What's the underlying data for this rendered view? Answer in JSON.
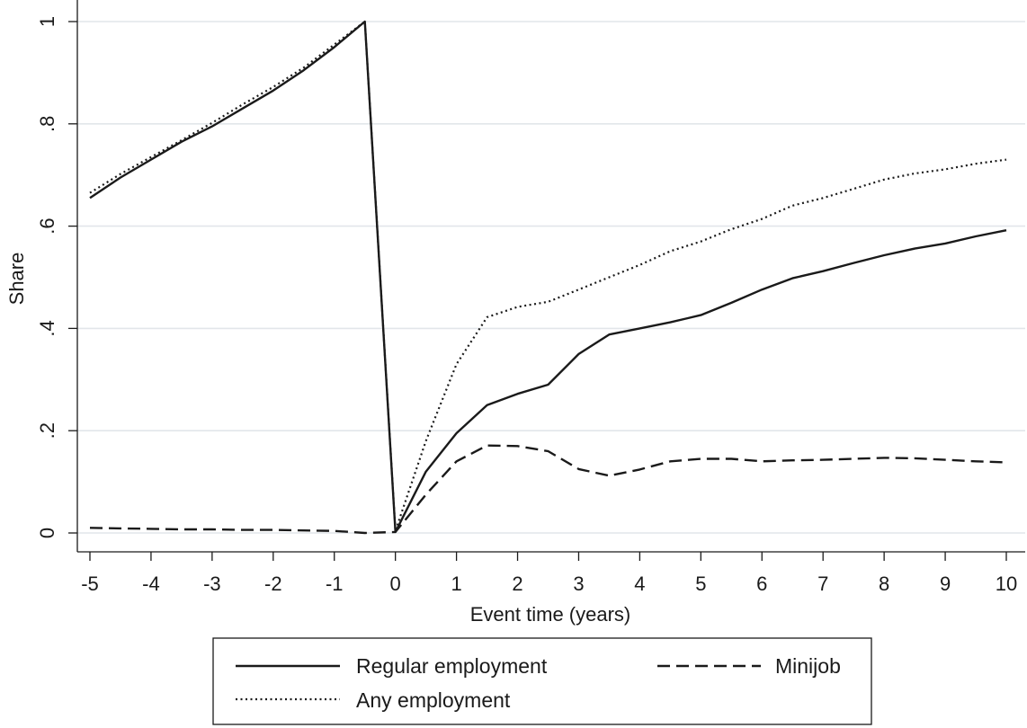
{
  "chart_data": {
    "type": "line",
    "title": "",
    "xlabel": "Event time (years)",
    "ylabel": "Share",
    "xlim": [
      -5,
      10
    ],
    "ylim": [
      0,
      1
    ],
    "x_ticks": [
      -5,
      -4,
      -3,
      -2,
      -1,
      0,
      1,
      2,
      3,
      4,
      5,
      6,
      7,
      8,
      9,
      10
    ],
    "x_tick_labels": [
      "-5",
      "-4",
      "-3",
      "-2",
      "-1",
      "0",
      "1",
      "2",
      "3",
      "4",
      "5",
      "6",
      "7",
      "8",
      "9",
      "10"
    ],
    "y_ticks": [
      0,
      0.2,
      0.4,
      0.6,
      0.8,
      1
    ],
    "y_tick_labels": [
      "0",
      ".2",
      ".4",
      ".6",
      ".8",
      "1"
    ],
    "grid": "horizontal",
    "legend_position": "bottom, outside plot",
    "series": [
      {
        "name": "Regular employment",
        "style": "solid",
        "color": "#1a1a1a",
        "x": [
          -5,
          -4.5,
          -4,
          -3.5,
          -3,
          -2.5,
          -2,
          -1.5,
          -1,
          -0.5,
          0,
          0.5,
          1,
          1.5,
          2,
          2.5,
          3,
          3.5,
          4,
          4.5,
          5,
          5.5,
          6,
          6.5,
          7,
          7.5,
          8,
          8.5,
          9,
          9.5,
          10
        ],
        "y": [
          0.655,
          0.695,
          0.73,
          0.765,
          0.795,
          0.83,
          0.865,
          0.905,
          0.95,
          1.0,
          0.002,
          0.12,
          0.195,
          0.25,
          0.272,
          0.29,
          0.35,
          0.388,
          0.4,
          0.412,
          0.426,
          0.45,
          0.476,
          0.498,
          0.512,
          0.528,
          0.543,
          0.556,
          0.566,
          0.58,
          0.592
        ]
      },
      {
        "name": "Minijob",
        "style": "dashed",
        "color": "#1a1a1a",
        "x": [
          -5,
          -4.5,
          -4,
          -3.5,
          -3,
          -2.5,
          -2,
          -1.5,
          -1,
          -0.5,
          0,
          0.5,
          1,
          1.5,
          2,
          2.5,
          3,
          3.5,
          4,
          4.5,
          5,
          5.5,
          6,
          6.5,
          7,
          7.5,
          8,
          8.5,
          9,
          9.5,
          10
        ],
        "y": [
          0.01,
          0.009,
          0.008,
          0.007,
          0.007,
          0.006,
          0.006,
          0.005,
          0.004,
          0.0,
          0.002,
          0.075,
          0.14,
          0.171,
          0.17,
          0.16,
          0.125,
          0.112,
          0.124,
          0.14,
          0.145,
          0.145,
          0.14,
          0.142,
          0.143,
          0.145,
          0.147,
          0.146,
          0.143,
          0.14,
          0.138
        ]
      },
      {
        "name": "Any employment",
        "style": "dotted",
        "color": "#1a1a1a",
        "x": [
          -5,
          -4.5,
          -4,
          -3.5,
          -3,
          -2.5,
          -2,
          -1.5,
          -1,
          -0.5,
          0,
          0.5,
          1,
          1.5,
          2,
          2.5,
          3,
          3.5,
          4,
          4.5,
          5,
          5.5,
          6,
          6.5,
          7,
          7.5,
          8,
          8.5,
          9,
          9.5,
          10
        ],
        "y": [
          0.665,
          0.702,
          0.735,
          0.768,
          0.802,
          0.838,
          0.872,
          0.91,
          0.955,
          1.0,
          0.004,
          0.18,
          0.33,
          0.422,
          0.442,
          0.452,
          0.476,
          0.5,
          0.524,
          0.551,
          0.57,
          0.594,
          0.614,
          0.64,
          0.655,
          0.673,
          0.691,
          0.703,
          0.711,
          0.722,
          0.73
        ]
      }
    ]
  }
}
